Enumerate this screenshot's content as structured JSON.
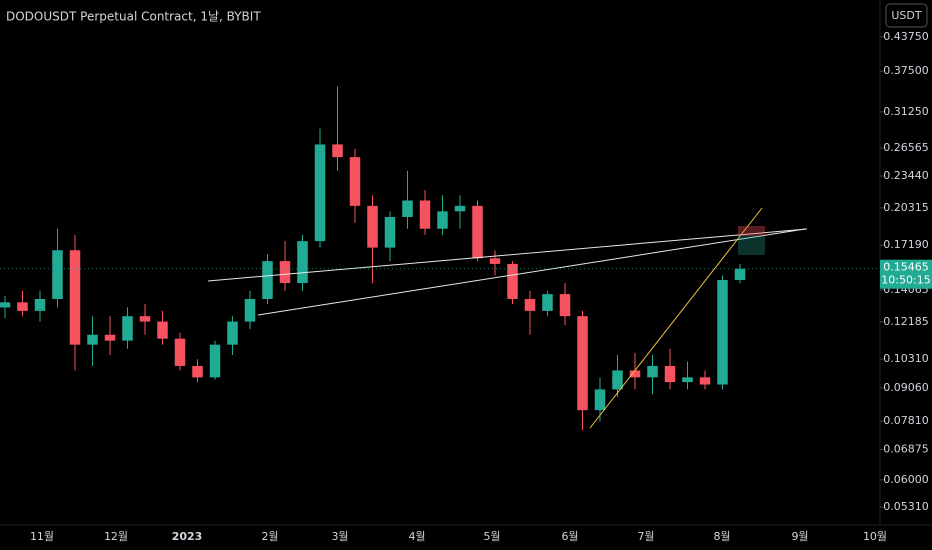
{
  "chart_data": {
    "type": "candlestick",
    "title": "DODOUSDT Perpetual Contract, 1날, BYBIT",
    "currency": "USDT",
    "log_scale": true,
    "grid": false,
    "up_color": "#22ab94",
    "down_color": "#f7525f",
    "ylim": [
      0.049,
      0.516
    ],
    "yticks": [
      {
        "value": 0.4375,
        "label": "0.43750"
      },
      {
        "value": 0.375,
        "label": "0.37500"
      },
      {
        "value": 0.3125,
        "label": "0.31250"
      },
      0.26565,
      {
        "value": 0.2344,
        "label": "0.23440"
      },
      0.20315,
      {
        "value": 0.1719,
        "label": "0.17190"
      },
      0.14065,
      0.12185,
      {
        "value": 0.1031,
        "label": "0.10310"
      },
      {
        "value": 0.0906,
        "label": "0.09060"
      },
      {
        "value": 0.0781,
        "label": "0.07810"
      },
      0.06875,
      {
        "value": 0.06,
        "label": "0.06000"
      },
      {
        "value": 0.0531,
        "label": "0.05310"
      }
    ],
    "x_labels": [
      "11월",
      "12월",
      "2023",
      "2월",
      "3월",
      "4월",
      "5월",
      "6월",
      "7월",
      "8월",
      "9월",
      "10월"
    ],
    "last_price": 0.15465,
    "countdown": "10:50:15",
    "open": [
      0.13,
      0.133,
      0.128,
      0.135,
      0.168,
      0.11,
      0.115,
      0.112,
      0.125,
      0.122,
      0.113,
      0.1,
      0.095,
      0.11,
      0.122,
      0.135,
      0.16,
      0.145,
      0.175,
      0.27,
      0.255,
      0.205,
      0.17,
      0.195,
      0.21,
      0.185,
      0.2,
      0.205,
      0.162,
      0.158,
      0.135,
      0.128,
      0.138,
      0.125,
      0.082,
      0.09,
      0.098,
      0.095,
      0.1,
      0.093,
      0.095,
      0.092,
      0.147
    ],
    "high": [
      0.137,
      0.14,
      0.14,
      0.185,
      0.18,
      0.125,
      0.125,
      0.13,
      0.132,
      0.128,
      0.116,
      0.103,
      0.112,
      0.125,
      0.14,
      0.165,
      0.175,
      0.18,
      0.29,
      0.35,
      0.265,
      0.215,
      0.2,
      0.24,
      0.22,
      0.215,
      0.215,
      0.21,
      0.168,
      0.16,
      0.14,
      0.14,
      0.145,
      0.128,
      0.095,
      0.105,
      0.106,
      0.105,
      0.108,
      0.102,
      0.098,
      0.15,
      0.158
    ],
    "low": [
      0.124,
      0.125,
      0.122,
      0.13,
      0.098,
      0.1,
      0.105,
      0.108,
      0.115,
      0.11,
      0.098,
      0.093,
      0.094,
      0.105,
      0.118,
      0.132,
      0.14,
      0.14,
      0.17,
      0.24,
      0.19,
      0.145,
      0.16,
      0.185,
      0.18,
      0.18,
      0.185,
      0.16,
      0.15,
      0.132,
      0.115,
      0.125,
      0.12,
      0.075,
      0.078,
      0.087,
      0.09,
      0.088,
      0.09,
      0.09,
      0.09,
      0.09,
      0.145
    ],
    "close": [
      0.133,
      0.128,
      0.135,
      0.168,
      0.11,
      0.115,
      0.112,
      0.125,
      0.122,
      0.113,
      0.1,
      0.095,
      0.11,
      0.122,
      0.135,
      0.16,
      0.145,
      0.175,
      0.27,
      0.255,
      0.205,
      0.17,
      0.195,
      0.21,
      0.185,
      0.2,
      0.205,
      0.162,
      0.158,
      0.135,
      0.128,
      0.138,
      0.125,
      0.082,
      0.09,
      0.098,
      0.095,
      0.1,
      0.093,
      0.095,
      0.092,
      0.147,
      0.15465
    ]
  }
}
